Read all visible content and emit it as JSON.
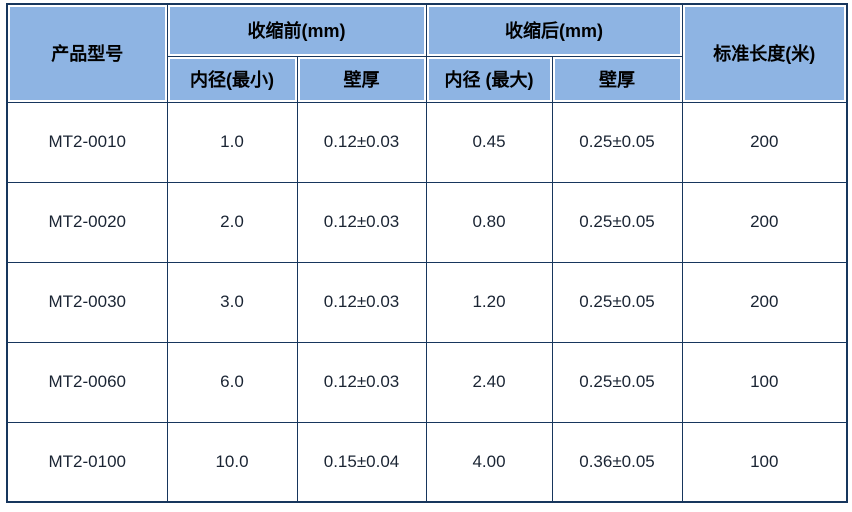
{
  "colors": {
    "header_bg": "#8EB4E3",
    "border": "#17365D",
    "header_text": "#000000",
    "data_text": "#1A2433"
  },
  "table": {
    "headers": {
      "product_model": "产品型号",
      "before_group": "收缩前(mm)",
      "after_group": "收缩后(mm)",
      "before_inner_diameter": "内径(最小)",
      "before_wall_thickness": "壁厚",
      "after_inner_diameter": "内径 (最大)",
      "after_wall_thickness": "壁厚",
      "standard_length": "标准长度(米)"
    },
    "rows": [
      {
        "model": "MT2-0010",
        "before_id": "1.0",
        "before_wall": "0.12±0.03",
        "after_id": "0.45",
        "after_wall": "0.25±0.05",
        "length": "200"
      },
      {
        "model": "MT2-0020",
        "before_id": "2.0",
        "before_wall": "0.12±0.03",
        "after_id": "0.80",
        "after_wall": "0.25±0.05",
        "length": "200"
      },
      {
        "model": "MT2-0030",
        "before_id": "3.0",
        "before_wall": "0.12±0.03",
        "after_id": "1.20",
        "after_wall": "0.25±0.05",
        "length": "200"
      },
      {
        "model": "MT2-0060",
        "before_id": "6.0",
        "before_wall": "0.12±0.03",
        "after_id": "2.40",
        "after_wall": "0.25±0.05",
        "length": "100"
      },
      {
        "model": "MT2-0100",
        "before_id": "10.0",
        "before_wall": "0.15±0.04",
        "after_id": "4.00",
        "after_wall": "0.36±0.05",
        "length": "100"
      }
    ]
  }
}
